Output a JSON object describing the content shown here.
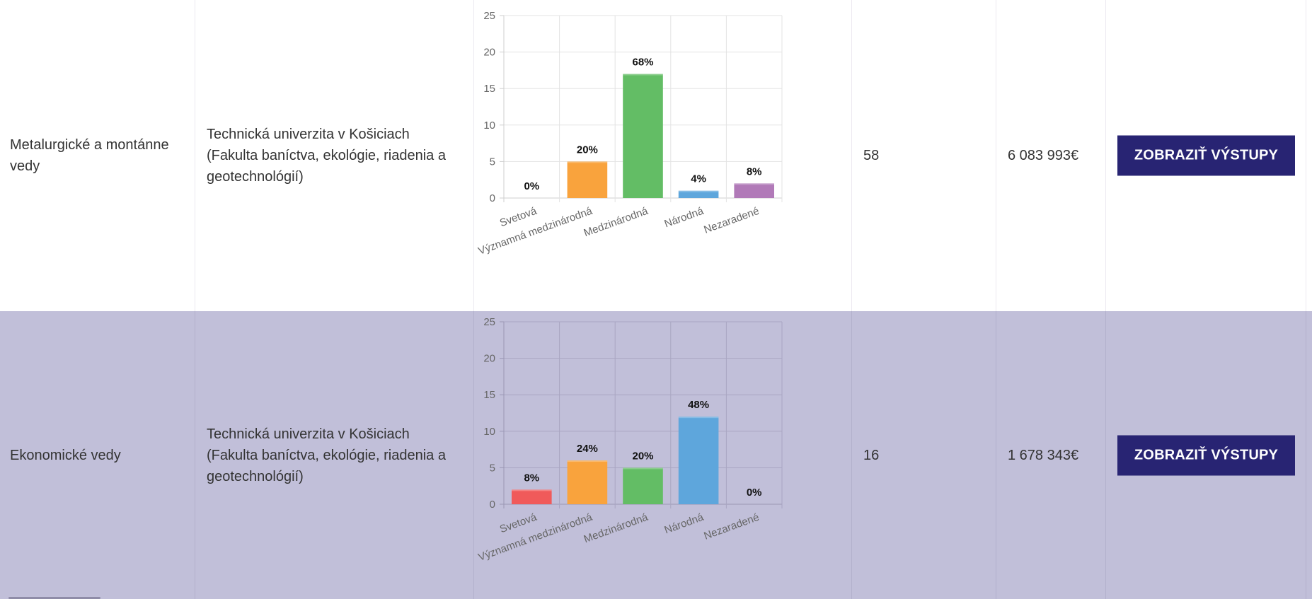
{
  "button_label": "ZOBRAZIŤ VÝSTUPY",
  "colors": {
    "button_bg": "#282473",
    "row_alt_bg": "#c1bfd9",
    "bar_svetova": "#f05a5a",
    "bar_vyznamna": "#f9a33d",
    "bar_medzinarodna": "#63bd65",
    "bar_narodna": "#5ea6dc",
    "bar_nezaradene": "#b17ab8"
  },
  "rows": [
    {
      "field": "Metalurgické a montánne vedy",
      "institution": "Technická univerzita v Košiciach (Fakulta baníctva, ekológie, riadenia a geotechnológií)",
      "count": "58",
      "amount": "6 083 993€",
      "chart_data": {
        "type": "bar",
        "categories": [
          "Svetová",
          "Významná medzinárodná",
          "Medzinárodná",
          "Národná",
          "Nezaradené"
        ],
        "values": [
          0,
          5,
          17,
          1,
          2
        ],
        "data_labels": [
          "0%",
          "20%",
          "68%",
          "4%",
          "8%"
        ],
        "ylim": [
          0,
          25
        ],
        "yticks": [
          "0",
          "5",
          "10",
          "15",
          "20",
          "25"
        ],
        "grid": true,
        "legend": "none"
      }
    },
    {
      "field": "Ekonomické vedy",
      "institution": "Technická univerzita v Košiciach (Fakulta baníctva, ekológie, riadenia a geotechnológií)",
      "count": "16",
      "amount": "1 678 343€",
      "chart_data": {
        "type": "bar",
        "categories": [
          "Svetová",
          "Významná medzinárodná",
          "Medzinárodná",
          "Národná",
          "Nezaradené"
        ],
        "values": [
          2,
          6,
          5,
          12,
          0
        ],
        "data_labels": [
          "8%",
          "24%",
          "20%",
          "48%",
          "0%"
        ],
        "ylim": [
          0,
          25
        ],
        "yticks": [
          "0",
          "5",
          "10",
          "15",
          "20",
          "25"
        ],
        "grid": true,
        "legend": "none"
      }
    }
  ]
}
